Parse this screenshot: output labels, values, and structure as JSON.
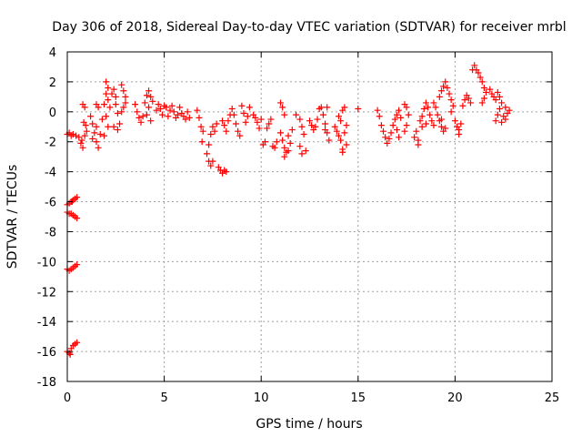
{
  "chart_data": {
    "type": "scatter",
    "title": "Day 306 of 2018, Sidereal Day-to-day VTEC variation (SDTVAR) for receiver mrbl",
    "xlabel": "GPS time / hours",
    "ylabel": "SDTVAR / TECUs",
    "xlim": [
      0,
      25
    ],
    "ylim": [
      -18,
      4
    ],
    "xticks": [
      0,
      5,
      10,
      15,
      20,
      25
    ],
    "yticks": [
      -18,
      -16,
      -14,
      -12,
      -10,
      -8,
      -6,
      -4,
      -2,
      0,
      2,
      4
    ],
    "grid": true,
    "marker": "+",
    "color": "#ff0000",
    "series": [
      {
        "name": "SDTVAR",
        "points": [
          [
            0.0,
            -1.5
          ],
          [
            0.1,
            -1.4
          ],
          [
            0.2,
            -1.6
          ],
          [
            0.3,
            -1.5
          ],
          [
            0.45,
            -1.6
          ],
          [
            0.6,
            -1.7
          ],
          [
            0.75,
            -1.9
          ],
          [
            0.8,
            -2.4
          ],
          [
            0.7,
            -2.1
          ],
          [
            0.0,
            -6.2
          ],
          [
            0.1,
            -6.1
          ],
          [
            0.2,
            -6.0
          ],
          [
            0.3,
            -5.9
          ],
          [
            0.4,
            -5.8
          ],
          [
            0.5,
            -5.7
          ],
          [
            0.25,
            -6.0
          ],
          [
            0.0,
            -6.7
          ],
          [
            0.1,
            -6.8
          ],
          [
            0.2,
            -6.8
          ],
          [
            0.3,
            -6.9
          ],
          [
            0.4,
            -7.0
          ],
          [
            0.5,
            -7.1
          ],
          [
            0.0,
            -10.5
          ],
          [
            0.1,
            -10.6
          ],
          [
            0.2,
            -10.5
          ],
          [
            0.3,
            -10.4
          ],
          [
            0.4,
            -10.3
          ],
          [
            0.5,
            -10.2
          ],
          [
            0.0,
            -16.0
          ],
          [
            0.1,
            -16.1
          ],
          [
            0.15,
            -16.2
          ],
          [
            0.2,
            -15.8
          ],
          [
            0.3,
            -15.6
          ],
          [
            0.4,
            -15.5
          ],
          [
            0.5,
            -15.4
          ],
          [
            0.8,
            0.5
          ],
          [
            0.9,
            0.3
          ],
          [
            0.85,
            -0.7
          ],
          [
            0.95,
            -0.9
          ],
          [
            1.0,
            -1.3
          ],
          [
            0.9,
            -1.6
          ],
          [
            1.2,
            -0.3
          ],
          [
            1.3,
            -0.8
          ],
          [
            1.4,
            -1.4
          ],
          [
            1.5,
            -2.0
          ],
          [
            1.6,
            -2.4
          ],
          [
            1.3,
            -1.8
          ],
          [
            1.5,
            -1.0
          ],
          [
            1.7,
            -1.5
          ],
          [
            1.8,
            -0.5
          ],
          [
            1.9,
            0.5
          ],
          [
            1.6,
            0.3
          ],
          [
            1.5,
            0.5
          ],
          [
            2.0,
            2.0
          ],
          [
            2.1,
            1.6
          ],
          [
            2.0,
            1.2
          ],
          [
            2.1,
            0.8
          ],
          [
            2.2,
            0.3
          ],
          [
            2.0,
            -0.3
          ],
          [
            2.1,
            -1.0
          ],
          [
            1.9,
            -1.6
          ],
          [
            2.3,
            1.2
          ],
          [
            2.4,
            1.5
          ],
          [
            2.5,
            1.0
          ],
          [
            2.5,
            0.5
          ],
          [
            2.6,
            -0.1
          ],
          [
            2.7,
            -0.8
          ],
          [
            2.6,
            -1.2
          ],
          [
            2.4,
            -1.0
          ],
          [
            2.8,
            1.8
          ],
          [
            2.9,
            1.4
          ],
          [
            3.0,
            1.0
          ],
          [
            3.0,
            0.6
          ],
          [
            2.9,
            0.3
          ],
          [
            2.8,
            0.0
          ],
          [
            3.5,
            0.5
          ],
          [
            3.6,
            0.0
          ],
          [
            3.7,
            -0.4
          ],
          [
            3.8,
            -0.7
          ],
          [
            3.9,
            -0.3
          ],
          [
            4.0,
            0.6
          ],
          [
            4.1,
            1.1
          ],
          [
            4.2,
            1.4
          ],
          [
            4.3,
            1.0
          ],
          [
            4.2,
            0.3
          ],
          [
            4.1,
            -0.2
          ],
          [
            4.3,
            -0.6
          ],
          [
            4.4,
            0.7
          ],
          [
            4.6,
            0.1
          ],
          [
            4.7,
            0.5
          ],
          [
            4.8,
            0.2
          ],
          [
            4.9,
            -0.2
          ],
          [
            5.0,
            0.4
          ],
          [
            5.1,
            0.3
          ],
          [
            5.2,
            -0.3
          ],
          [
            5.3,
            0.1
          ],
          [
            5.4,
            0.4
          ],
          [
            5.5,
            0.0
          ],
          [
            5.6,
            -0.4
          ],
          [
            5.7,
            -0.2
          ],
          [
            5.8,
            0.3
          ],
          [
            5.9,
            -0.1
          ],
          [
            6.0,
            -0.3
          ],
          [
            6.1,
            -0.5
          ],
          [
            6.2,
            0.0
          ],
          [
            6.3,
            -0.4
          ],
          [
            6.7,
            0.1
          ],
          [
            6.8,
            -0.4
          ],
          [
            6.9,
            -1.0
          ],
          [
            6.95,
            -2.0
          ],
          [
            7.0,
            -1.3
          ],
          [
            7.2,
            -2.8
          ],
          [
            7.3,
            -3.3
          ],
          [
            7.4,
            -3.6
          ],
          [
            7.5,
            -3.3
          ],
          [
            7.3,
            -2.2
          ],
          [
            7.4,
            -1.5
          ],
          [
            7.5,
            -1.0
          ],
          [
            7.6,
            -1.3
          ],
          [
            7.7,
            -0.8
          ],
          [
            7.9,
            -3.9
          ],
          [
            8.0,
            -4.1
          ],
          [
            8.1,
            -3.9
          ],
          [
            8.2,
            -4.0
          ],
          [
            7.8,
            -3.7
          ],
          [
            8.0,
            -0.6
          ],
          [
            8.1,
            -0.9
          ],
          [
            8.2,
            -1.3
          ],
          [
            8.3,
            -0.6
          ],
          [
            8.4,
            -0.2
          ],
          [
            8.5,
            0.2
          ],
          [
            8.6,
            -0.2
          ],
          [
            8.7,
            -0.8
          ],
          [
            8.8,
            -1.3
          ],
          [
            8.9,
            -1.6
          ],
          [
            9.0,
            0.4
          ],
          [
            9.1,
            -0.1
          ],
          [
            9.2,
            -0.7
          ],
          [
            9.3,
            -0.3
          ],
          [
            9.4,
            0.3
          ],
          [
            9.6,
            -0.2
          ],
          [
            9.7,
            -0.4
          ],
          [
            9.8,
            -0.7
          ],
          [
            9.9,
            -1.1
          ],
          [
            10.0,
            -0.5
          ],
          [
            10.1,
            -2.2
          ],
          [
            10.2,
            -2.0
          ],
          [
            10.3,
            -1.1
          ],
          [
            10.4,
            -0.8
          ],
          [
            10.5,
            -0.5
          ],
          [
            10.6,
            -2.3
          ],
          [
            10.7,
            -2.4
          ],
          [
            10.8,
            -2.0
          ],
          [
            11.0,
            0.6
          ],
          [
            11.1,
            0.3
          ],
          [
            11.2,
            -0.2
          ],
          [
            11.0,
            -1.4
          ],
          [
            11.1,
            -1.9
          ],
          [
            11.2,
            -2.4
          ],
          [
            11.3,
            -2.7
          ],
          [
            11.2,
            -3.0
          ],
          [
            11.4,
            -2.6
          ],
          [
            11.5,
            -2.1
          ],
          [
            11.4,
            -1.6
          ],
          [
            11.6,
            -1.2
          ],
          [
            11.8,
            -0.2
          ],
          [
            12.0,
            -0.5
          ],
          [
            12.1,
            -1.0
          ],
          [
            12.2,
            -1.5
          ],
          [
            12.0,
            -2.3
          ],
          [
            12.3,
            -2.6
          ],
          [
            12.1,
            -2.8
          ],
          [
            12.5,
            -0.6
          ],
          [
            12.6,
            -0.9
          ],
          [
            12.7,
            -1.2
          ],
          [
            12.8,
            -1.0
          ],
          [
            12.9,
            -0.5
          ],
          [
            13.0,
            0.2
          ],
          [
            13.1,
            0.3
          ],
          [
            13.2,
            -0.2
          ],
          [
            13.3,
            -0.8
          ],
          [
            13.4,
            -1.4
          ],
          [
            13.5,
            -1.9
          ],
          [
            13.3,
            -1.2
          ],
          [
            13.4,
            0.3
          ],
          [
            13.8,
            -1.0
          ],
          [
            13.9,
            -1.3
          ],
          [
            14.0,
            -1.6
          ],
          [
            14.1,
            -1.9
          ],
          [
            14.2,
            -2.5
          ],
          [
            14.3,
            -1.4
          ],
          [
            14.4,
            -0.9
          ],
          [
            14.1,
            -0.6
          ],
          [
            14.0,
            -0.3
          ],
          [
            14.2,
            0.1
          ],
          [
            14.3,
            0.3
          ],
          [
            14.4,
            -2.2
          ],
          [
            14.2,
            -2.7
          ],
          [
            15.0,
            0.2
          ],
          [
            16.0,
            0.1
          ],
          [
            16.1,
            -0.3
          ],
          [
            16.2,
            -0.9
          ],
          [
            16.3,
            -1.3
          ],
          [
            16.4,
            -1.7
          ],
          [
            16.5,
            -2.1
          ],
          [
            16.6,
            -1.8
          ],
          [
            16.7,
            -1.4
          ],
          [
            16.8,
            -0.9
          ],
          [
            16.9,
            -0.5
          ],
          [
            17.0,
            -0.2
          ],
          [
            17.1,
            0.1
          ],
          [
            17.2,
            -0.4
          ],
          [
            17.0,
            -1.2
          ],
          [
            17.1,
            -1.7
          ],
          [
            17.4,
            0.5
          ],
          [
            17.5,
            0.3
          ],
          [
            17.6,
            -0.2
          ],
          [
            17.4,
            -1.3
          ],
          [
            17.5,
            -0.9
          ],
          [
            17.9,
            -1.7
          ],
          [
            18.0,
            -1.3
          ],
          [
            18.1,
            -1.9
          ],
          [
            18.1,
            -2.2
          ],
          [
            18.2,
            -0.6
          ],
          [
            18.3,
            -0.3
          ],
          [
            18.4,
            0.2
          ],
          [
            18.5,
            0.6
          ],
          [
            18.6,
            0.3
          ],
          [
            18.7,
            -0.2
          ],
          [
            18.8,
            -0.6
          ],
          [
            18.9,
            -0.9
          ],
          [
            18.5,
            -0.8
          ],
          [
            18.3,
            -1.0
          ],
          [
            18.9,
            0.6
          ],
          [
            19.0,
            0.3
          ],
          [
            19.1,
            -0.2
          ],
          [
            19.2,
            -0.6
          ],
          [
            19.3,
            -1.0
          ],
          [
            19.4,
            -1.3
          ],
          [
            19.5,
            -1.1
          ],
          [
            19.3,
            -0.5
          ],
          [
            19.2,
            1.0
          ],
          [
            19.3,
            1.4
          ],
          [
            19.4,
            1.7
          ],
          [
            19.5,
            2.0
          ],
          [
            19.6,
            1.6
          ],
          [
            19.7,
            1.2
          ],
          [
            19.8,
            0.8
          ],
          [
            19.9,
            0.4
          ],
          [
            19.8,
            0.0
          ],
          [
            20.0,
            -0.6
          ],
          [
            20.1,
            -1.0
          ],
          [
            20.2,
            -1.2
          ],
          [
            20.2,
            -1.5
          ],
          [
            20.3,
            -0.8
          ],
          [
            20.4,
            0.4
          ],
          [
            20.5,
            0.8
          ],
          [
            20.6,
            1.1
          ],
          [
            20.7,
            0.9
          ],
          [
            20.8,
            0.6
          ],
          [
            20.9,
            2.8
          ],
          [
            21.0,
            3.1
          ],
          [
            21.1,
            2.8
          ],
          [
            21.2,
            2.6
          ],
          [
            21.3,
            2.3
          ],
          [
            21.4,
            2.0
          ],
          [
            21.5,
            1.6
          ],
          [
            21.6,
            1.3
          ],
          [
            21.5,
            0.9
          ],
          [
            21.4,
            0.6
          ],
          [
            21.8,
            1.5
          ],
          [
            21.9,
            1.2
          ],
          [
            22.0,
            1.0
          ],
          [
            22.1,
            0.8
          ],
          [
            22.2,
            1.3
          ],
          [
            22.3,
            1.0
          ],
          [
            22.4,
            0.6
          ],
          [
            22.3,
            0.2
          ],
          [
            22.2,
            -0.2
          ],
          [
            22.1,
            -0.6
          ],
          [
            22.5,
            -0.3
          ],
          [
            22.6,
            -0.5
          ],
          [
            22.7,
            -0.1
          ],
          [
            22.8,
            0.1
          ],
          [
            22.6,
            0.3
          ],
          [
            22.4,
            -0.7
          ]
        ]
      }
    ]
  }
}
